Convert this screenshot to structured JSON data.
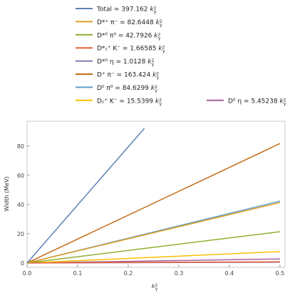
{
  "chart_data": {
    "type": "line",
    "xlabel": "k_γ^2",
    "ylabel": "Width (MeV)",
    "xlim": [
      0,
      0.51
    ],
    "ylim": [
      -3,
      97
    ],
    "x_ticks": [
      "0.0",
      "0.1",
      "0.2",
      "0.3",
      "0.4",
      "0.5"
    ],
    "y_ticks": [
      "0",
      "20",
      "40",
      "60",
      "80"
    ],
    "x_tick_values": [
      0,
      0.1,
      0.2,
      0.3,
      0.4,
      0.5
    ],
    "y_tick_values": [
      0,
      20,
      40,
      60,
      80
    ],
    "legend_placement": "top",
    "series": [
      {
        "name": "Total = 397.162 k_γ^2",
        "color": "#5e81b5",
        "slope": 397.162,
        "x": [
          0,
          0.2318
        ],
        "y": [
          0,
          92.06
        ]
      },
      {
        "name": "D*⁺ π⁻ = 82.6448 k_γ^2",
        "color": "#e19c24",
        "slope": 82.6448,
        "x": [
          0,
          0.5
        ],
        "y": [
          0,
          41.32
        ]
      },
      {
        "name": "D*⁰ π⁰ = 42.7926 k_γ^2",
        "color": "#8fb032",
        "slope": 42.7926,
        "x": [
          0,
          0.5
        ],
        "y": [
          0,
          21.4
        ]
      },
      {
        "name": "D*ₛ⁺ K⁻ = 1.66585 k_γ^2",
        "color": "#eb6235",
        "slope": 1.66585,
        "x": [
          0,
          0.5
        ],
        "y": [
          0,
          0.83
        ]
      },
      {
        "name": "D*⁰ η = 1.0128 k_γ^2",
        "color": "#8778b3",
        "slope": 1.0128,
        "x": [
          0,
          0.5
        ],
        "y": [
          0,
          0.51
        ]
      },
      {
        "name": "D⁺ π⁻ = 163.424 k_γ^2",
        "color": "#c56e1a",
        "slope": 163.424,
        "x": [
          0,
          0.5
        ],
        "y": [
          0,
          81.71
        ]
      },
      {
        "name": "D⁰ π⁰ = 84.6299 k_γ^2",
        "color": "#5d9ec7",
        "slope": 84.6299,
        "x": [
          0,
          0.5
        ],
        "y": [
          0,
          42.31
        ]
      },
      {
        "name": "Dₛ⁺ K⁻ = 15.5399 k_γ^2",
        "color": "#ffbf00",
        "slope": 15.5399,
        "x": [
          0,
          0.5
        ],
        "y": [
          0,
          7.77
        ]
      },
      {
        "name": "D⁰ η = 5.45238 k_γ^2",
        "color": "#a5609d",
        "slope": 5.45238,
        "x": [
          0,
          0.5
        ],
        "y": [
          0,
          2.73
        ]
      }
    ]
  }
}
